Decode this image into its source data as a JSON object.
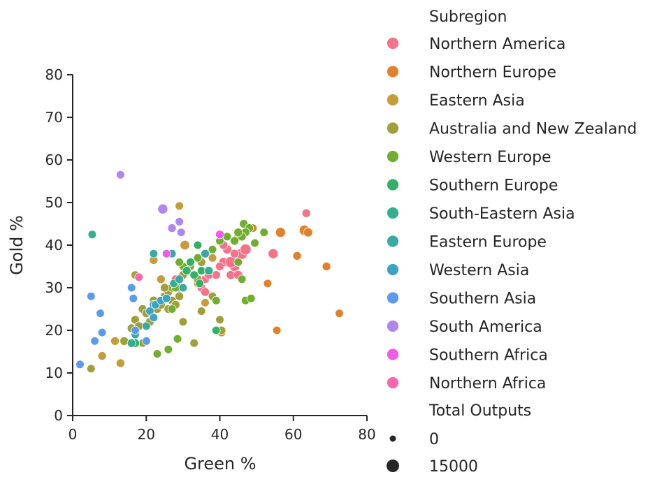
{
  "chart_data": {
    "type": "scatter",
    "xlabel": "Green %",
    "ylabel": "Gold %",
    "xlim": [
      0,
      80
    ],
    "ylim": [
      0,
      80
    ],
    "xticks": [
      0,
      20,
      40,
      60,
      80
    ],
    "yticks": [
      0,
      10,
      20,
      30,
      40,
      50,
      60,
      70,
      80
    ],
    "grid": false,
    "legend": {
      "placement": "outside-right",
      "hue_title": "Subregion",
      "size_title": "Total Outputs",
      "size_entries": [
        {
          "label": "0",
          "value": 0
        },
        {
          "label": "15000",
          "value": 15000
        }
      ]
    },
    "series": [
      {
        "name": "Northern America",
        "color": "#f77189",
        "points": [
          [
            43,
            33,
            3000
          ],
          [
            44,
            35,
            6000
          ],
          [
            46,
            38,
            9000
          ],
          [
            41,
            36,
            4000
          ],
          [
            45,
            33,
            3000
          ],
          [
            42,
            39,
            3000
          ],
          [
            40,
            35,
            2000
          ],
          [
            54.5,
            38,
            5000
          ],
          [
            47,
            39,
            8000
          ],
          [
            43,
            36,
            9000
          ],
          [
            36,
            32,
            2000
          ],
          [
            35,
            30,
            2000
          ],
          [
            36,
            29,
            2000
          ],
          [
            39,
            33,
            2000
          ],
          [
            63.5,
            47.5,
            2000
          ],
          [
            24,
            27,
            2000
          ],
          [
            28,
            32,
            2000
          ],
          [
            41,
            40,
            2000
          ],
          [
            44,
            38,
            2000
          ],
          [
            37,
            33,
            2000
          ]
        ]
      },
      {
        "name": "Northern Europe",
        "color": "#e1812c",
        "points": [
          [
            56.5,
            43,
            5000
          ],
          [
            63,
            43.5,
            6000
          ],
          [
            64,
            43,
            3000
          ],
          [
            61,
            37.5,
            2000
          ],
          [
            69,
            35,
            2000
          ],
          [
            72.5,
            24,
            1500
          ],
          [
            55.5,
            20,
            1500
          ],
          [
            53,
            31,
            1500
          ],
          [
            49,
            44,
            1500
          ],
          [
            45,
            42,
            2000
          ],
          [
            40.5,
            19.5,
            1500
          ]
        ]
      },
      {
        "name": "Eastern Asia",
        "color": "#c69c3a",
        "points": [
          [
            30.5,
            40,
            4000
          ],
          [
            13,
            12.3,
            2000
          ],
          [
            8,
            14,
            2000
          ],
          [
            11.5,
            17.5,
            2000
          ],
          [
            22,
            36.5,
            2000
          ],
          [
            36,
            26.5,
            1500
          ],
          [
            38,
            37,
            1500
          ],
          [
            29,
            49.2,
            1500
          ],
          [
            24,
            32,
            2000
          ],
          [
            34,
            31,
            1500
          ]
        ]
      },
      {
        "name": "Australia and New Zealand",
        "color": "#9fa03a",
        "points": [
          [
            5,
            11,
            1500
          ],
          [
            14,
            17.5,
            2000
          ],
          [
            16,
            20.5,
            2000
          ],
          [
            17,
            22.5,
            2000
          ],
          [
            18,
            21,
            2000
          ],
          [
            19,
            25,
            2000
          ],
          [
            20,
            24,
            2000
          ],
          [
            21,
            22,
            2000
          ],
          [
            22,
            27,
            2000
          ],
          [
            23,
            25,
            2000
          ],
          [
            24,
            26,
            2000
          ],
          [
            25,
            28,
            2000
          ],
          [
            26,
            29,
            2000
          ],
          [
            27,
            30,
            2000
          ],
          [
            28,
            31,
            2000
          ],
          [
            29,
            30,
            2000
          ],
          [
            30,
            33,
            2000
          ],
          [
            31,
            34,
            2000
          ],
          [
            32,
            35,
            2000
          ],
          [
            33,
            33,
            2000
          ],
          [
            34,
            32,
            2000
          ],
          [
            35,
            36,
            2000
          ],
          [
            26,
            25,
            2000
          ],
          [
            27,
            27,
            2000
          ],
          [
            28,
            26,
            2000
          ],
          [
            29,
            28,
            2000
          ],
          [
            30,
            22,
            1500
          ],
          [
            33,
            17,
            1500
          ],
          [
            17,
            33,
            1500
          ],
          [
            19,
            17,
            1500
          ],
          [
            35,
            24.5,
            1500
          ],
          [
            40,
            22.5,
            1500
          ],
          [
            40.5,
            20,
            1500
          ],
          [
            38,
            28,
            1500
          ],
          [
            27,
            38,
            1500
          ],
          [
            25,
            30,
            2000
          ],
          [
            22,
            23,
            2000
          ]
        ]
      },
      {
        "name": "Western Europe",
        "color": "#6fae2e",
        "points": [
          [
            46.5,
            45,
            2000
          ],
          [
            48,
            44,
            2000
          ],
          [
            47,
            43,
            2000
          ],
          [
            46,
            42,
            2000
          ],
          [
            45,
            43,
            2000
          ],
          [
            44,
            41,
            2000
          ],
          [
            52,
            43,
            1500
          ],
          [
            49.5,
            40.5,
            1500
          ],
          [
            42,
            42,
            1500
          ],
          [
            40,
            41,
            1500
          ],
          [
            38,
            39,
            1500
          ],
          [
            36,
            38,
            1500
          ],
          [
            34,
            37,
            1500
          ],
          [
            32,
            36,
            1500
          ],
          [
            30,
            35,
            1500
          ],
          [
            29,
            36,
            1500
          ],
          [
            47,
            27,
            1500
          ],
          [
            48.5,
            27.5,
            1500
          ],
          [
            45,
            36,
            1500
          ],
          [
            46,
            32,
            1500
          ],
          [
            28,
            30,
            1500
          ],
          [
            26,
            15.5,
            1500
          ],
          [
            23,
            14.5,
            1500
          ],
          [
            28.5,
            18,
            1500
          ],
          [
            27,
            25,
            1500
          ],
          [
            39,
            27,
            1500
          ]
        ]
      },
      {
        "name": "Southern Europe",
        "color": "#33b067",
        "points": [
          [
            34,
            40,
            1500
          ],
          [
            32,
            36,
            1500
          ],
          [
            31,
            34,
            2000
          ],
          [
            33,
            33,
            1500
          ],
          [
            34.5,
            31,
            1500
          ],
          [
            17,
            17,
            2000
          ],
          [
            39,
            20,
            1500
          ],
          [
            35,
            34,
            1500
          ]
        ]
      },
      {
        "name": "South-Eastern Asia",
        "color": "#36ad91",
        "points": [
          [
            5.3,
            42.5,
            1500
          ],
          [
            37,
            34,
            2000
          ],
          [
            16,
            17,
            2000
          ],
          [
            27.5,
            31,
            1500
          ]
        ]
      },
      {
        "name": "Eastern Europe",
        "color": "#38a9a5",
        "points": [
          [
            22,
            38,
            1500
          ],
          [
            22,
            26,
            2000
          ],
          [
            36,
            38,
            2000
          ],
          [
            29,
            32,
            2000
          ],
          [
            30,
            30,
            1500
          ],
          [
            20,
            21,
            1500
          ],
          [
            17,
            19,
            1500
          ],
          [
            27,
            38,
            1500
          ]
        ]
      },
      {
        "name": "Western Asia",
        "color": "#3ba3c5",
        "points": [
          [
            21,
            24.5,
            1500
          ],
          [
            22.5,
            26,
            1500
          ],
          [
            24,
            27,
            1500
          ],
          [
            25.5,
            27.5,
            1500
          ],
          [
            22,
            23,
            1500
          ]
        ]
      },
      {
        "name": "Southern Asia",
        "color": "#5a9bf0",
        "points": [
          [
            2,
            12,
            1500
          ],
          [
            5,
            28,
            1500
          ],
          [
            6,
            17.5,
            1500
          ],
          [
            7.5,
            24,
            1500
          ],
          [
            8,
            19.5,
            1500
          ],
          [
            16,
            30,
            1500
          ],
          [
            16.5,
            27.5,
            1500
          ],
          [
            17,
            20,
            1500
          ],
          [
            20,
            17.5,
            1500
          ]
        ]
      },
      {
        "name": "South America",
        "color": "#ad86f0",
        "points": [
          [
            13,
            56.5,
            1500
          ],
          [
            24.5,
            48.5,
            5000
          ],
          [
            27,
            44,
            2000
          ],
          [
            29,
            45.5,
            1500
          ],
          [
            29.5,
            43,
            1500
          ]
        ]
      },
      {
        "name": "Southern Africa",
        "color": "#ef5bea",
        "points": [
          [
            40,
            42.5,
            2000
          ],
          [
            25.5,
            38,
            1500
          ]
        ]
      },
      {
        "name": "Northern Africa",
        "color": "#f866b0",
        "points": [
          [
            18,
            32.5,
            1500
          ]
        ]
      }
    ]
  }
}
